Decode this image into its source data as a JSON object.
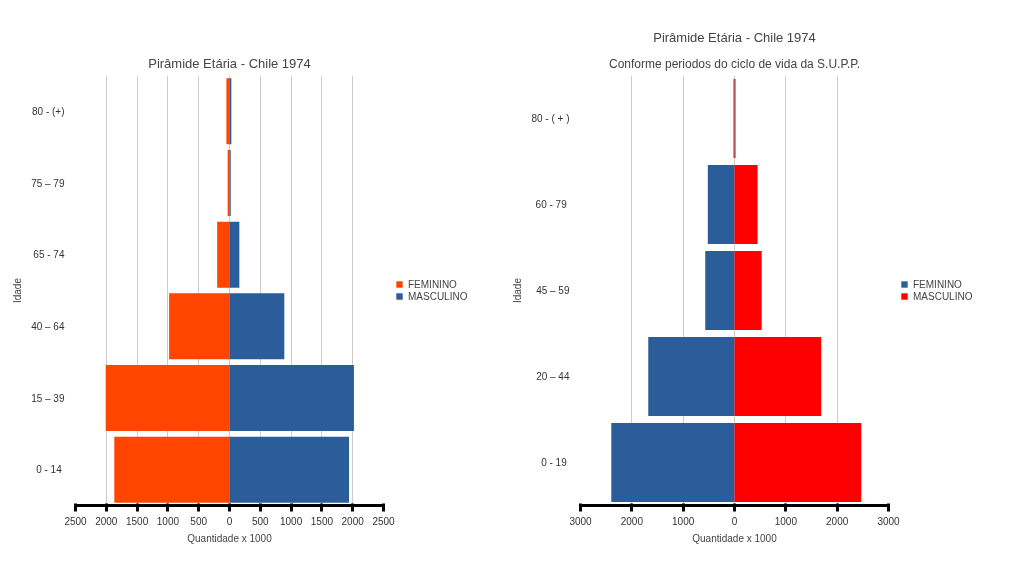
{
  "chart_data": [
    {
      "type": "bar",
      "orientation": "horizontal",
      "stacked": true,
      "title": "Pirâmide Etária - Chile 1974",
      "xlabel": "Quantidade x 1000",
      "ylabel": "Idade",
      "categories": [
        "80 - (+)",
        "75 – 79",
        "65 - 74",
        "40 – 64",
        "15 – 39",
        "0 -  14"
      ],
      "series": [
        {
          "name": "FEMININO",
          "color": "#ff4500",
          "values": [
            -50,
            -30,
            -200,
            -980,
            -2010,
            -1870
          ]
        },
        {
          "name": "MASCULINO",
          "color": "#2a5d9a",
          "values": [
            30,
            20,
            160,
            890,
            2020,
            1940
          ]
        }
      ],
      "xlim": [
        -2500,
        2500
      ],
      "xticks": [
        {
          "value": -2500,
          "label": "2500"
        },
        {
          "value": -2000,
          "label": "2000"
        },
        {
          "value": -1500,
          "label": "1500"
        },
        {
          "value": -1000,
          "label": "1000"
        },
        {
          "value": -500,
          "label": "500"
        },
        0,
        500,
        1000,
        1500,
        2000,
        2500
      ],
      "grid": "x",
      "legend": "right"
    },
    {
      "type": "bar",
      "orientation": "horizontal",
      "stacked": true,
      "title": "Pirâmide Etária - Chile 1974",
      "subtitle": "Conforme periodos do ciclo de vida da S.U.P.P.",
      "xlabel": "Quantidade x 1000",
      "ylabel": "Idade",
      "categories": [
        "80 - ( + )",
        "60 -  79",
        "45 – 59",
        "20 – 44",
        "0 -  19"
      ],
      "series": [
        {
          "name": "FEMININO",
          "color": "#2a5d9a",
          "values": [
            -20,
            -520,
            -570,
            -1680,
            -2400
          ]
        },
        {
          "name": "MASCULINO",
          "color": "#ff0000",
          "values": [
            20,
            450,
            530,
            1690,
            2470
          ]
        }
      ],
      "xlim": [
        -3000,
        3000
      ],
      "xticks": [
        {
          "value": -3000,
          "label": "3000"
        },
        {
          "value": -2000,
          "label": "2000"
        },
        {
          "value": -1000,
          "label": "1000"
        },
        0,
        1000,
        2000,
        3000
      ],
      "grid": "x",
      "legend": "right"
    }
  ]
}
